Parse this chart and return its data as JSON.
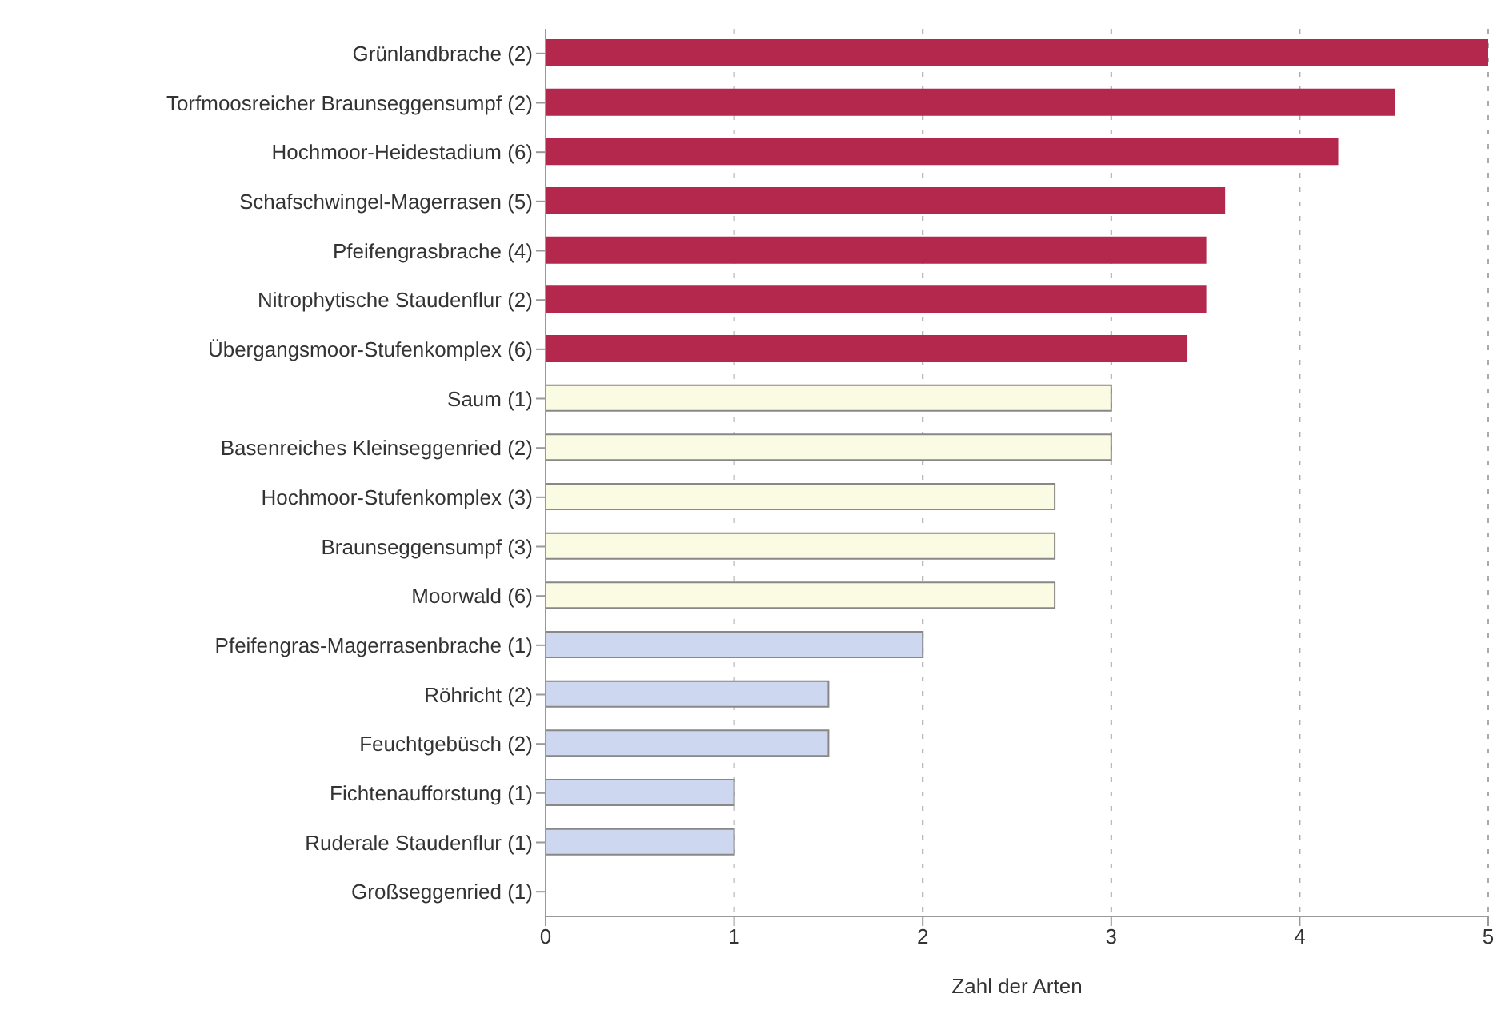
{
  "chart_data": {
    "type": "bar",
    "orientation": "horizontal",
    "xlabel": "Zahl der Arten",
    "categories": [
      "Grünlandbrache (2)",
      "Torfmoosreicher Braunseggensumpf (2)",
      "Hochmoor-Heidestadium (6)",
      "Schafschwingel-Magerrasen (5)",
      "Pfeifengrasbrache (4)",
      "Nitrophytische Staudenflur (2)",
      "Übergangsmoor-Stufenkomplex (6)",
      "Saum (1)",
      "Basenreiches Kleinseggenried (2)",
      "Hochmoor-Stufenkomplex (3)",
      "Braunseggensumpf (3)",
      "Moorwald (6)",
      "Pfeifengras-Magerrasenbrache (1)",
      "Röhricht (2)",
      "Feuchtgebüsch (2)",
      "Fichtenaufforstung (1)",
      "Ruderale Staudenflur (1)",
      "Großseggenried (1)"
    ],
    "values": [
      5,
      4.5,
      4.2,
      3.6,
      3.5,
      3.5,
      3.4,
      3,
      3,
      2.7,
      2.7,
      2.7,
      2,
      1.5,
      1.5,
      1,
      1,
      0
    ],
    "colors": [
      "#b3284c",
      "#b3284c",
      "#b3284c",
      "#b3284c",
      "#b3284c",
      "#b3284c",
      "#b3284c",
      "#fbfbe4",
      "#fbfbe4",
      "#fbfbe4",
      "#fbfbe4",
      "#fbfbe4",
      "#cdd7ef",
      "#cdd7ef",
      "#cdd7ef",
      "#cdd7ef",
      "#cdd7ef",
      "#cdd7ef"
    ],
    "xlim": [
      0,
      5
    ],
    "xticks": [
      0,
      1,
      2,
      3,
      4,
      5
    ],
    "grid": "x"
  }
}
